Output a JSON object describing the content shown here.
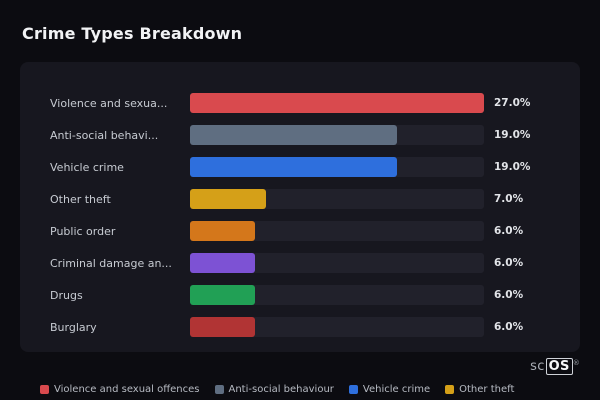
{
  "page": {
    "title": "Crime Types Breakdown"
  },
  "chart_data": {
    "type": "bar",
    "orientation": "horizontal",
    "title": "Crime Types Breakdown",
    "xlabel": "",
    "ylabel": "",
    "xlim": [
      0,
      27
    ],
    "grid": false,
    "legend_position": "bottom",
    "categories": [
      "Violence and sexua...",
      "Anti-social behavi...",
      "Vehicle crime",
      "Other theft",
      "Public order",
      "Criminal damage an...",
      "Drugs",
      "Burglary"
    ],
    "values": [
      27.0,
      19.0,
      19.0,
      7.0,
      6.0,
      6.0,
      6.0,
      6.0
    ],
    "value_labels": [
      "27.0%",
      "19.0%",
      "19.0%",
      "7.0%",
      "6.0%",
      "6.0%",
      "6.0%",
      "6.0%"
    ],
    "colors": [
      "#d94a4e",
      "#5f6e81",
      "#2e6fdd",
      "#d5a018",
      "#d4771b",
      "#7d52d4",
      "#21a055",
      "#b13434"
    ],
    "track_color": "#21212b"
  },
  "legend": {
    "items": [
      {
        "label": "Violence and sexual offences",
        "color": "#d94a4e"
      },
      {
        "label": "Anti-social behaviour",
        "color": "#5f6e81"
      },
      {
        "label": "Vehicle crime",
        "color": "#2e6fdd"
      },
      {
        "label": "Other theft",
        "color": "#d5a018"
      }
    ]
  },
  "branding": {
    "prefix": "sc",
    "suffix": "OS",
    "reg": "®"
  }
}
